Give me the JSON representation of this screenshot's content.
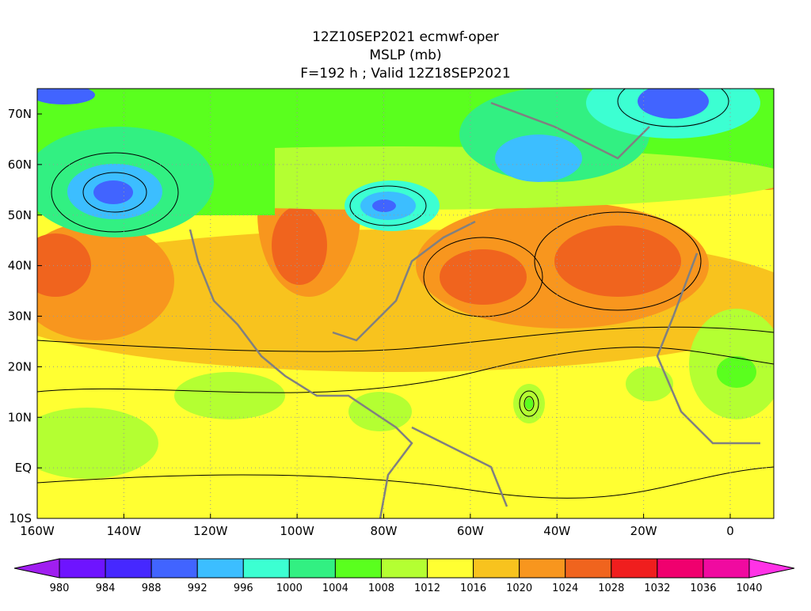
{
  "title": [
    "12Z10SEP2021 ecmwf-oper",
    "MSLP (mb)",
    "F=192 h ; Valid 12Z18SEP2021"
  ],
  "map": {
    "lat_labels": [
      "70N",
      "60N",
      "50N",
      "40N",
      "30N",
      "20N",
      "10N",
      "EQ",
      "10S"
    ],
    "lon_labels": [
      "160W",
      "140W",
      "120W",
      "100W",
      "80W",
      "60W",
      "40W",
      "20W",
      "0"
    ]
  },
  "colorbar": {
    "levels": [
      980,
      984,
      988,
      992,
      996,
      1000,
      1004,
      1008,
      1012,
      1016,
      1020,
      1024,
      1028,
      1032,
      1036,
      1040
    ],
    "colors": [
      "#a01ef0",
      "#6e14ff",
      "#4628ff",
      "#4164ff",
      "#3cbeff",
      "#3cffd2",
      "#32f082",
      "#5aff1e",
      "#b4ff32",
      "#ffff32",
      "#f8c31e",
      "#f8961e",
      "#f0641e",
      "#f01e1e",
      "#f0006e",
      "#f00aa0",
      "#ff32e6"
    ]
  }
}
